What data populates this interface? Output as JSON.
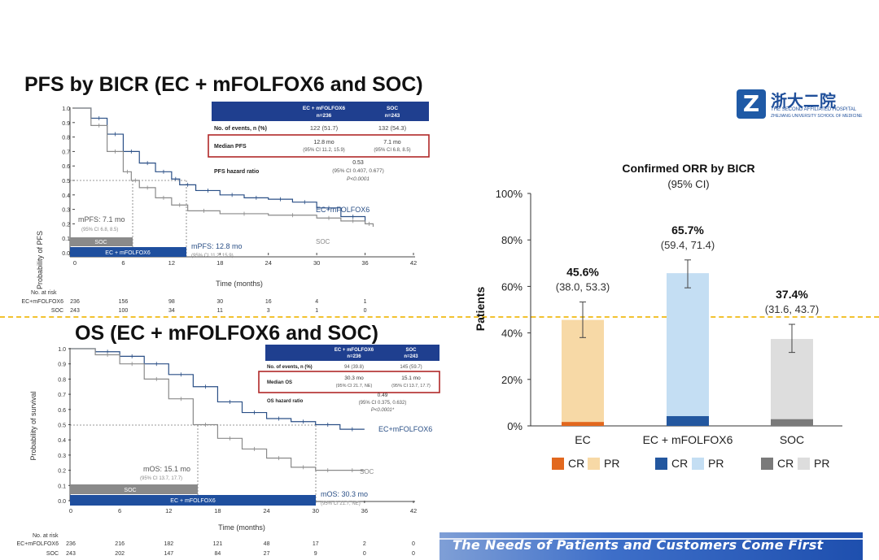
{
  "pfs": {
    "title": "PFS by BICR (EC + mFOLFOX6 and SOC)",
    "ylabel": "Probability of PFS",
    "xlabel": "Time (months)",
    "yticks": [
      "1.0",
      "0.9",
      "0.8",
      "0.7",
      "0.6",
      "0.5",
      "0.4",
      "0.3",
      "0.2",
      "0.1",
      "0.0"
    ],
    "xticks": [
      "0",
      "6",
      "12",
      "18",
      "24",
      "30",
      "36",
      "42"
    ],
    "curve_label_ec": "EC+mFOLFOX6",
    "curve_label_soc": "SOC",
    "median_soc": "mPFS: 7.1 mo",
    "median_soc_ci": "(95% CI 6.8, 8.5)",
    "median_ec": "mPFS: 12.8 mo",
    "median_ec_ci": "(95% CI 11.2, 15.9)",
    "bar_soc": "SOC",
    "bar_ec": "EC + mFOLFOX6",
    "table": {
      "col_ec": "EC + mFOLFOX6",
      "col_ec_n": "n=236",
      "col_soc": "SOC",
      "col_soc_n": "n=243",
      "row_events": "No. of events, n (%)",
      "events_ec": "122 (51.7)",
      "events_soc": "132 (54.3)",
      "row_median": "Median PFS",
      "median_ec": "12.8 mo",
      "median_ec_ci": "(95% CI 11.2, 15.9)",
      "median_soc": "7.1 mo",
      "median_soc_ci": "(95% CI 6.8, 8.5)",
      "row_hr": "PFS hazard ratio",
      "hr": "0.53",
      "hr_ci": "(95% CI 0.407, 0.677)",
      "hr_p": "P<0.0001"
    },
    "risk": {
      "header": "No. at risk",
      "label_ec": "EC+mFOLFOX6",
      "label_soc": "SOC",
      "ec": [
        "236",
        "156",
        "98",
        "30",
        "16",
        "4",
        "1"
      ],
      "soc": [
        "243",
        "100",
        "34",
        "11",
        "3",
        "1",
        "0"
      ]
    }
  },
  "os": {
    "title": "OS (EC + mFOLFOX6 and SOC)",
    "ylabel": "Probability of survival",
    "xlabel": "Time (months)",
    "yticks": [
      "1.0",
      "0.9",
      "0.8",
      "0.7",
      "0.6",
      "0.5",
      "0.4",
      "0.3",
      "0.2",
      "0.1",
      "0.0"
    ],
    "xticks": [
      "0",
      "6",
      "12",
      "18",
      "24",
      "30",
      "36",
      "42"
    ],
    "curve_label_ec": "EC+mFOLFOX6",
    "curve_label_soc": "SOC",
    "median_soc": "mOS: 15.1 mo",
    "median_soc_ci": "(95% CI 13.7, 17.7)",
    "median_ec": "mOS: 30.3 mo",
    "median_ec_ci": "(95% CI 21.7, NE)",
    "bar_soc": "SOC",
    "bar_ec": "EC + mFOLFOX6",
    "table": {
      "col_ec": "EC + mFOLFOX6",
      "col_ec_n": "n=236",
      "col_soc": "SOC",
      "col_soc_n": "n=243",
      "row_events": "No. of events, n (%)",
      "events_ec": "94 (39.8)",
      "events_soc": "145 (59.7)",
      "row_median": "Median OS",
      "median_ec": "30.3 mo",
      "median_ec_ci": "(95% CI 21.7, NE)",
      "median_soc": "15.1 mo",
      "median_soc_ci": "(95% CI 13.7, 17.7)",
      "row_hr": "OS hazard ratio",
      "hr": "0.49",
      "hr_ci": "(95% CI 0.375, 0.632)",
      "hr_p": "P<0.0001*"
    },
    "risk": {
      "header": "No. at risk",
      "label_ec": "EC+mFOLFOX6",
      "label_soc": "SOC",
      "ec": [
        "236",
        "216",
        "182",
        "121",
        "48",
        "17",
        "2",
        "0"
      ],
      "soc": [
        "243",
        "202",
        "147",
        "84",
        "27",
        "9",
        "0",
        "0"
      ]
    }
  },
  "orr": {
    "title": "Confirmed ORR by BICR",
    "subtitle": "(95% CI)",
    "ylabel": "Patients",
    "yticks": [
      "100%",
      "80%",
      "60%",
      "40%",
      "20%",
      "0%"
    ],
    "legend": [
      "CR",
      "PR",
      "CR",
      "PR",
      "CR",
      "PR"
    ]
  },
  "logo": {
    "letter": "Z",
    "name": "浙大二院",
    "sub1": "THE SECOND AFFILIATED HOSPITAL",
    "sub2": "ZHEJIANG UNIVERSITY SCHOOL OF MEDICINE"
  },
  "footer": {
    "text": "The Needs of Patients and Customers Come First"
  },
  "colors": {
    "km_ec": "#2a4f86",
    "km_soc": "#8a8a8a",
    "table_header": "#1f3f8f",
    "highlight_box": "#b02828",
    "ec_cr": "#e2681e",
    "ec_pr": "#f7d9a6",
    "combo_cr": "#23579f",
    "combo_pr": "#c4def3",
    "soc_cr": "#7a7a7a",
    "soc_pr": "#dddddd"
  },
  "chart_data": [
    {
      "type": "line",
      "title": "PFS by BICR (EC + mFOLFOX6 and SOC)",
      "xlabel": "Time (months)",
      "ylabel": "Probability of PFS",
      "xlim": [
        0,
        42
      ],
      "ylim": [
        0,
        1
      ],
      "series": [
        {
          "name": "EC+mFOLFOX6",
          "x": [
            0,
            2,
            4,
            6,
            8,
            10,
            12,
            13,
            15,
            18,
            21,
            24,
            27,
            30,
            33,
            36
          ],
          "y": [
            1.0,
            0.93,
            0.82,
            0.7,
            0.62,
            0.56,
            0.51,
            0.47,
            0.43,
            0.4,
            0.38,
            0.37,
            0.35,
            0.31,
            0.25,
            0.21
          ]
        },
        {
          "name": "SOC",
          "x": [
            0,
            2,
            4,
            6,
            7,
            8,
            10,
            12,
            14,
            18,
            24,
            30,
            33,
            36,
            37
          ],
          "y": [
            1.0,
            0.88,
            0.7,
            0.56,
            0.5,
            0.45,
            0.38,
            0.33,
            0.29,
            0.27,
            0.26,
            0.24,
            0.22,
            0.2,
            0.18
          ]
        }
      ]
    },
    {
      "type": "line",
      "title": "OS (EC + mFOLFOX6 and SOC)",
      "xlabel": "Time (months)",
      "ylabel": "Probability of survival",
      "xlim": [
        0,
        42
      ],
      "ylim": [
        0,
        1
      ],
      "series": [
        {
          "name": "EC+mFOLFOX6",
          "x": [
            0,
            3,
            6,
            9,
            12,
            15,
            18,
            21,
            24,
            27,
            30,
            33,
            36
          ],
          "y": [
            1.0,
            0.98,
            0.95,
            0.9,
            0.83,
            0.75,
            0.65,
            0.58,
            0.54,
            0.52,
            0.5,
            0.47,
            0.47
          ]
        },
        {
          "name": "SOC",
          "x": [
            0,
            3,
            6,
            9,
            12,
            15,
            18,
            21,
            24,
            27,
            30,
            33,
            36
          ],
          "y": [
            1.0,
            0.96,
            0.9,
            0.8,
            0.67,
            0.5,
            0.41,
            0.34,
            0.28,
            0.22,
            0.2,
            0.2,
            0.2
          ]
        }
      ]
    },
    {
      "type": "bar",
      "title": "Confirmed ORR by BICR",
      "subtitle": "(95% CI)",
      "ylabel": "Patients",
      "ylim": [
        0,
        100
      ],
      "categories": [
        "EC",
        "EC + mFOLFOX6",
        "SOC"
      ],
      "series": [
        {
          "name": "CR",
          "values": [
            1.7,
            4.2,
            2.9
          ]
        },
        {
          "name": "PR",
          "values": [
            43.9,
            61.5,
            34.5
          ]
        }
      ],
      "totals": [
        45.6,
        65.7,
        37.4
      ],
      "value_labels": [
        "45.6%",
        "65.7%",
        "37.4%"
      ],
      "ci_labels": [
        "(38.0, 53.3)",
        "(59.4, 71.4)",
        "(31.6, 43.7)"
      ],
      "ci_low": [
        38.0,
        59.4,
        31.6
      ],
      "ci_high": [
        53.3,
        71.4,
        43.7
      ]
    }
  ]
}
